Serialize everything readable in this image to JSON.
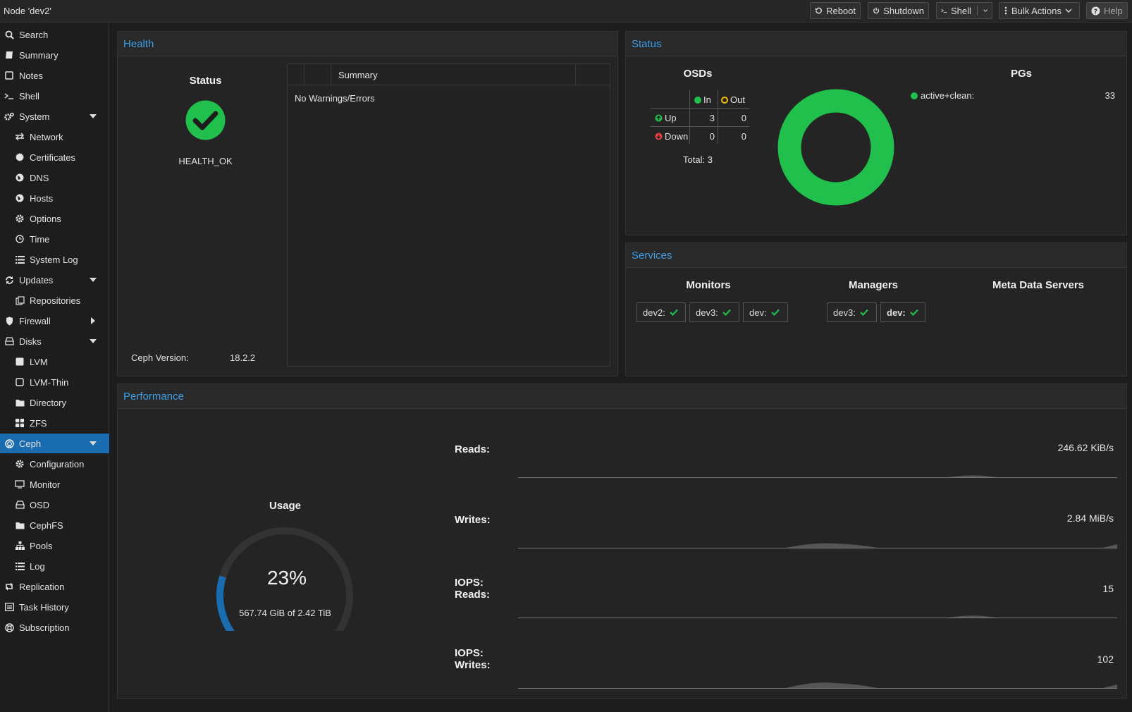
{
  "window": {
    "title": "Node 'dev2'"
  },
  "toolbar": {
    "reboot": "Reboot",
    "shutdown": "Shutdown",
    "shell": "Shell",
    "bulk_actions": "Bulk Actions",
    "help": "Help"
  },
  "sidebar": {
    "items": [
      {
        "label": "Search",
        "icon": "search-icon"
      },
      {
        "label": "Summary",
        "icon": "book-icon"
      },
      {
        "label": "Notes",
        "icon": "note-icon"
      },
      {
        "label": "Shell",
        "icon": "terminal-icon"
      },
      {
        "label": "System",
        "icon": "cogs-icon"
      },
      {
        "label": "Network",
        "icon": "exchange-icon"
      },
      {
        "label": "Certificates",
        "icon": "certificate-icon"
      },
      {
        "label": "DNS",
        "icon": "globe-icon"
      },
      {
        "label": "Hosts",
        "icon": "globe-icon"
      },
      {
        "label": "Options",
        "icon": "gear-icon"
      },
      {
        "label": "Time",
        "icon": "clock-icon"
      },
      {
        "label": "System Log",
        "icon": "list-icon"
      },
      {
        "label": "Updates",
        "icon": "refresh-icon"
      },
      {
        "label": "Repositories",
        "icon": "files-icon"
      },
      {
        "label": "Firewall",
        "icon": "shield-icon"
      },
      {
        "label": "Disks",
        "icon": "hdd-icon"
      },
      {
        "label": "LVM",
        "icon": "square-icon"
      },
      {
        "label": "LVM-Thin",
        "icon": "square-outline-icon"
      },
      {
        "label": "Directory",
        "icon": "folder-icon"
      },
      {
        "label": "ZFS",
        "icon": "th-large-icon"
      },
      {
        "label": "Ceph",
        "icon": "ceph-icon"
      },
      {
        "label": "Configuration",
        "icon": "gear-icon"
      },
      {
        "label": "Monitor",
        "icon": "desktop-icon"
      },
      {
        "label": "OSD",
        "icon": "hdd-icon"
      },
      {
        "label": "CephFS",
        "icon": "folder-icon"
      },
      {
        "label": "Pools",
        "icon": "sitemap-icon"
      },
      {
        "label": "Log",
        "icon": "list-icon"
      },
      {
        "label": "Replication",
        "icon": "retweet-icon"
      },
      {
        "label": "Task History",
        "icon": "list-alt-icon"
      },
      {
        "label": "Subscription",
        "icon": "support-icon"
      }
    ]
  },
  "health": {
    "title": "Health",
    "status_label": "Status",
    "status_value": "HEALTH_OK",
    "summary_header": "Summary",
    "summary_text": "No Warnings/Errors",
    "version_label": "Ceph Version:",
    "version_value": "18.2.2",
    "status_color": "#21bf4b"
  },
  "status": {
    "title": "Status",
    "osds_label": "OSDs",
    "pgs_label": "PGs",
    "in_label": "In",
    "out_label": "Out",
    "up_label": "Up",
    "down_label": "Down",
    "up_in": "3",
    "up_out": "0",
    "down_in": "0",
    "down_out": "0",
    "total": "Total: 3",
    "pg_state": "active+clean:",
    "pg_count": "33",
    "ok_color": "#21bf4b",
    "warn_color": "#f0c000",
    "err_color": "#f04040"
  },
  "services": {
    "title": "Services",
    "monitors_label": "Monitors",
    "managers_label": "Managers",
    "mds_label": "Meta Data Servers",
    "monitors": [
      "dev2:",
      "dev3:",
      "dev:"
    ],
    "managers": [
      "dev3:",
      "dev:"
    ]
  },
  "performance": {
    "title": "Performance",
    "usage_label": "Usage",
    "usage_percent": "23%",
    "usage_fraction": 0.23,
    "usage_detail": "567.74 GiB of 2.42 TiB",
    "reads_label": "Reads:",
    "reads_value": "246.62 KiB/s",
    "writes_label": "Writes:",
    "writes_value": "2.84 MiB/s",
    "iops_reads_label1": "IOPS:",
    "iops_reads_label2": "Reads:",
    "iops_reads_value": "15",
    "iops_writes_label1": "IOPS:",
    "iops_writes_label2": "Writes:",
    "iops_writes_value": "102",
    "accent_color": "#1a6cb0"
  }
}
